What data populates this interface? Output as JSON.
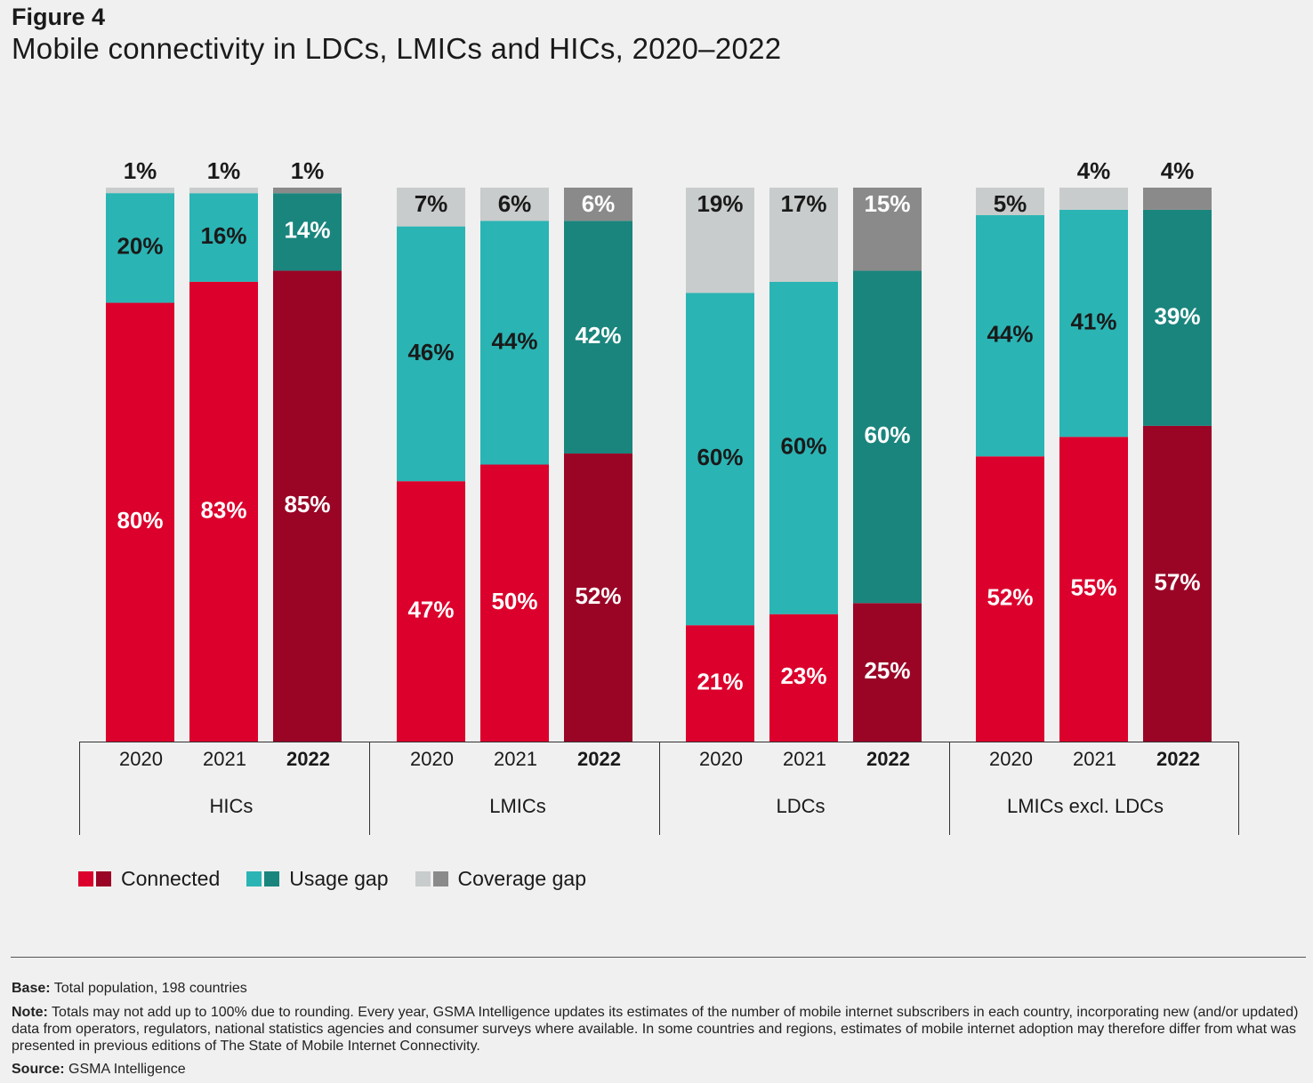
{
  "figure": {
    "label": "Figure 4",
    "title": "Mobile connectivity in LDCs, LMICs and HICs, 2020–2022"
  },
  "chart_data": {
    "type": "bar",
    "stacked": true,
    "title": "Mobile connectivity in LDCs, LMICs and HICs, 2020–2022",
    "ylim": [
      0,
      100
    ],
    "grid": false,
    "legend_position": "bottom-left",
    "groups": [
      {
        "name": "HICs",
        "bars": [
          {
            "year": "2020",
            "bold": false,
            "connected": 80,
            "usage_gap": 20,
            "coverage_gap": 1
          },
          {
            "year": "2021",
            "bold": false,
            "connected": 83,
            "usage_gap": 16,
            "coverage_gap": 1
          },
          {
            "year": "2022",
            "bold": true,
            "connected": 85,
            "usage_gap": 14,
            "coverage_gap": 1
          }
        ]
      },
      {
        "name": "LMICs",
        "bars": [
          {
            "year": "2020",
            "bold": false,
            "connected": 47,
            "usage_gap": 46,
            "coverage_gap": 7
          },
          {
            "year": "2021",
            "bold": false,
            "connected": 50,
            "usage_gap": 44,
            "coverage_gap": 6
          },
          {
            "year": "2022",
            "bold": true,
            "connected": 52,
            "usage_gap": 42,
            "coverage_gap": 6
          }
        ]
      },
      {
        "name": "LDCs",
        "bars": [
          {
            "year": "2020",
            "bold": false,
            "connected": 21,
            "usage_gap": 60,
            "coverage_gap": 19
          },
          {
            "year": "2021",
            "bold": false,
            "connected": 23,
            "usage_gap": 60,
            "coverage_gap": 17
          },
          {
            "year": "2022",
            "bold": true,
            "connected": 25,
            "usage_gap": 60,
            "coverage_gap": 15
          }
        ]
      },
      {
        "name": "LMICs excl. LDCs",
        "bars": [
          {
            "year": "2020",
            "bold": false,
            "connected": 52,
            "usage_gap": 44,
            "coverage_gap": 5
          },
          {
            "year": "2021",
            "bold": false,
            "connected": 55,
            "usage_gap": 41,
            "coverage_gap": 4
          },
          {
            "year": "2022",
            "bold": true,
            "connected": 57,
            "usage_gap": 39,
            "coverage_gap": 4
          }
        ]
      }
    ],
    "series": [
      {
        "key": "connected",
        "name": "Connected",
        "color": "#dc002c",
        "color_2022": "#9a0526"
      },
      {
        "key": "usage_gap",
        "name": "Usage gap",
        "color": "#2bb4b4",
        "color_2022": "#1a857d"
      },
      {
        "key": "coverage_gap",
        "name": "Coverage gap",
        "color": "#c9cccc",
        "color_2022": "#8a8a8a"
      }
    ]
  },
  "footnotes": {
    "base_label": "Base:",
    "base_text": "Total population, 198 countries",
    "note_label": "Note:",
    "note_text": "Totals may not add up to 100% due to rounding. Every year, GSMA Intelligence updates its estimates of the number of mobile internet subscribers in each country, incorporating new (and/or updated) data from operators, regulators, national statistics agencies and consumer surveys where available. In some countries and regions, estimates of mobile internet adoption may therefore differ from what was presented in previous editions of The State of Mobile Internet Connectivity.",
    "source_label": "Source:",
    "source_text": "GSMA Intelligence"
  }
}
